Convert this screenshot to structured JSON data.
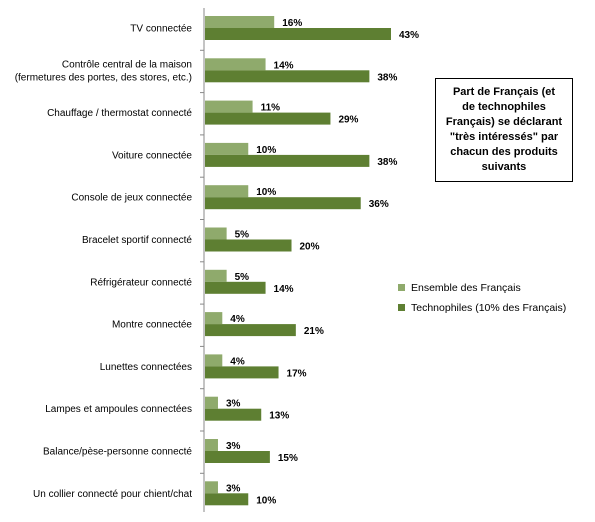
{
  "chart_data": {
    "type": "bar",
    "orientation": "horizontal",
    "title": "Part de Français (et\nde technophiles\nFrançais) se déclarant\n\"très intéressés\" par\nchacun des produits\nsuivants",
    "categories": [
      "TV connectée",
      "Contrôle central de la maison\n(fermetures des portes,  des stores, etc.)",
      "Chauffage / thermostat connecté",
      "Voiture connectée",
      "Console de jeux connectée",
      "Bracelet sportif connecté",
      "Réfrigérateur connecté",
      "Montre connectée",
      "Lunettes connectées",
      "Lampes et ampoules connectées",
      "Balance/pèse-personne connecté",
      "Un collier connecté pour chient/chat"
    ],
    "series": [
      {
        "name": "Ensemble des Français",
        "color": "#8faa6c",
        "values": [
          16,
          14,
          11,
          10,
          10,
          5,
          5,
          4,
          4,
          3,
          3,
          3
        ],
        "labels": [
          "16%",
          "14%",
          "11%",
          "10%",
          "10%",
          "5%",
          "5%",
          "4%",
          "4%",
          "3%",
          "3%",
          "3%"
        ]
      },
      {
        "name": "Technophiles (10% des Français)",
        "color": "#5e7f32",
        "values": [
          43,
          38,
          29,
          38,
          36,
          20,
          14,
          21,
          17,
          13,
          15,
          10
        ],
        "labels": [
          "43%",
          "38%",
          "29%",
          "38%",
          "36%",
          "20%",
          "14%",
          "21%",
          "17%",
          "13%",
          "15%",
          "10%"
        ]
      }
    ],
    "xlim": [
      0,
      43
    ],
    "grid": false,
    "legend_position": "right"
  }
}
